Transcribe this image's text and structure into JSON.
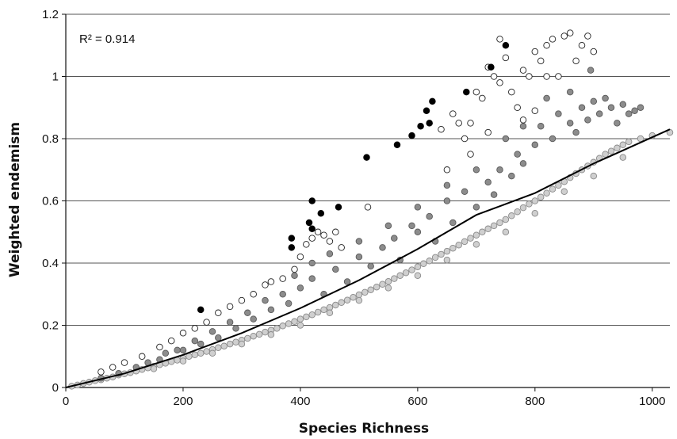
{
  "chart_data": {
    "type": "scatter",
    "xlabel": "Species Richness",
    "ylabel": "Weighted endemism",
    "annotation": "R² = 0.914",
    "xlim": [
      0,
      1030
    ],
    "ylim": [
      0,
      1.2
    ],
    "xticks": [
      0,
      200,
      400,
      600,
      800,
      1000
    ],
    "yticks": [
      0,
      0.2,
      0.4,
      0.6,
      0.8,
      1,
      1.2
    ],
    "xtick_labels": [
      "0",
      "200",
      "400",
      "600",
      "800",
      "1000"
    ],
    "ytick_labels": [
      "0",
      "0.2",
      "0.4",
      "0.6",
      "0.8",
      "1",
      "1.2"
    ],
    "grid": "horizontal",
    "colors": {
      "light_fill": "#cfcfcf",
      "light_stroke": "#8a8a8a",
      "dark_fill": "#8c8c8c",
      "dark_stroke": "#5a5a5a",
      "white_fill": "#ffffff",
      "white_stroke": "#222222",
      "black_fill": "#000000",
      "trend": "#000000",
      "grid": "#555555"
    },
    "trend_line": {
      "model": "power",
      "points": [
        [
          0,
          0.0
        ],
        [
          100,
          0.045
        ],
        [
          200,
          0.105
        ],
        [
          300,
          0.175
        ],
        [
          400,
          0.255
        ],
        [
          500,
          0.345
        ],
        [
          600,
          0.445
        ],
        [
          700,
          0.555
        ],
        [
          800,
          0.625
        ],
        [
          900,
          0.72
        ],
        [
          1030,
          0.83
        ]
      ]
    },
    "series": [
      {
        "category": "light-grey",
        "points": [
          [
            10,
            0.004
          ],
          [
            20,
            0.008
          ],
          [
            30,
            0.013
          ],
          [
            40,
            0.017
          ],
          [
            50,
            0.022
          ],
          [
            60,
            0.025
          ],
          [
            70,
            0.03
          ],
          [
            80,
            0.034
          ],
          [
            90,
            0.04
          ],
          [
            100,
            0.044
          ],
          [
            110,
            0.048
          ],
          [
            120,
            0.053
          ],
          [
            130,
            0.058
          ],
          [
            140,
            0.063
          ],
          [
            150,
            0.068
          ],
          [
            160,
            0.073
          ],
          [
            170,
            0.078
          ],
          [
            180,
            0.083
          ],
          [
            190,
            0.088
          ],
          [
            200,
            0.094
          ],
          [
            210,
            0.1
          ],
          [
            220,
            0.105
          ],
          [
            230,
            0.11
          ],
          [
            240,
            0.116
          ],
          [
            250,
            0.122
          ],
          [
            260,
            0.128
          ],
          [
            270,
            0.133
          ],
          [
            280,
            0.14
          ],
          [
            290,
            0.146
          ],
          [
            300,
            0.152
          ],
          [
            310,
            0.158
          ],
          [
            320,
            0.165
          ],
          [
            330,
            0.171
          ],
          [
            340,
            0.178
          ],
          [
            350,
            0.184
          ],
          [
            360,
            0.19
          ],
          [
            370,
            0.198
          ],
          [
            380,
            0.205
          ],
          [
            390,
            0.212
          ],
          [
            400,
            0.22
          ],
          [
            410,
            0.227
          ],
          [
            420,
            0.234
          ],
          [
            430,
            0.242
          ],
          [
            440,
            0.25
          ],
          [
            450,
            0.257
          ],
          [
            460,
            0.265
          ],
          [
            470,
            0.273
          ],
          [
            480,
            0.281
          ],
          [
            490,
            0.29
          ],
          [
            500,
            0.298
          ],
          [
            510,
            0.306
          ],
          [
            520,
            0.314
          ],
          [
            530,
            0.323
          ],
          [
            540,
            0.332
          ],
          [
            550,
            0.341
          ],
          [
            560,
            0.35
          ],
          [
            570,
            0.36
          ],
          [
            580,
            0.369
          ],
          [
            590,
            0.378
          ],
          [
            600,
            0.388
          ],
          [
            610,
            0.398
          ],
          [
            620,
            0.407
          ],
          [
            630,
            0.418
          ],
          [
            640,
            0.428
          ],
          [
            650,
            0.438
          ],
          [
            660,
            0.448
          ],
          [
            670,
            0.458
          ],
          [
            680,
            0.469
          ],
          [
            690,
            0.48
          ],
          [
            700,
            0.49
          ],
          [
            710,
            0.5
          ],
          [
            720,
            0.51
          ],
          [
            730,
            0.52
          ],
          [
            740,
            0.53
          ],
          [
            750,
            0.54
          ],
          [
            760,
            0.552
          ],
          [
            770,
            0.565
          ],
          [
            780,
            0.578
          ],
          [
            790,
            0.59
          ],
          [
            800,
            0.6
          ],
          [
            810,
            0.612
          ],
          [
            820,
            0.625
          ],
          [
            830,
            0.638
          ],
          [
            840,
            0.65
          ],
          [
            850,
            0.662
          ],
          [
            860,
            0.675
          ],
          [
            870,
            0.688
          ],
          [
            880,
            0.7
          ],
          [
            890,
            0.712
          ],
          [
            900,
            0.724
          ],
          [
            910,
            0.737
          ],
          [
            920,
            0.75
          ],
          [
            930,
            0.76
          ],
          [
            940,
            0.77
          ],
          [
            950,
            0.78
          ],
          [
            960,
            0.79
          ],
          [
            980,
            0.8
          ],
          [
            1000,
            0.81
          ],
          [
            1030,
            0.82
          ],
          [
            150,
            0.06
          ],
          [
            250,
            0.11
          ],
          [
            350,
            0.17
          ],
          [
            450,
            0.24
          ],
          [
            550,
            0.32
          ],
          [
            650,
            0.41
          ],
          [
            750,
            0.5
          ],
          [
            850,
            0.63
          ],
          [
            950,
            0.74
          ],
          [
            200,
            0.085
          ],
          [
            300,
            0.14
          ],
          [
            400,
            0.2
          ],
          [
            500,
            0.28
          ],
          [
            600,
            0.36
          ],
          [
            700,
            0.46
          ],
          [
            800,
            0.56
          ],
          [
            900,
            0.68
          ]
        ]
      },
      {
        "category": "dark-grey",
        "points": [
          [
            60,
            0.03
          ],
          [
            90,
            0.045
          ],
          [
            120,
            0.065
          ],
          [
            160,
            0.09
          ],
          [
            200,
            0.12
          ],
          [
            230,
            0.14
          ],
          [
            260,
            0.16
          ],
          [
            290,
            0.19
          ],
          [
            320,
            0.22
          ],
          [
            350,
            0.25
          ],
          [
            370,
            0.3
          ],
          [
            380,
            0.27
          ],
          [
            400,
            0.32
          ],
          [
            420,
            0.35
          ],
          [
            440,
            0.3
          ],
          [
            460,
            0.38
          ],
          [
            480,
            0.34
          ],
          [
            500,
            0.42
          ],
          [
            520,
            0.39
          ],
          [
            540,
            0.45
          ],
          [
            560,
            0.48
          ],
          [
            570,
            0.41
          ],
          [
            590,
            0.52
          ],
          [
            600,
            0.5
          ],
          [
            620,
            0.55
          ],
          [
            630,
            0.47
          ],
          [
            650,
            0.6
          ],
          [
            660,
            0.53
          ],
          [
            680,
            0.63
          ],
          [
            700,
            0.58
          ],
          [
            720,
            0.66
          ],
          [
            730,
            0.62
          ],
          [
            740,
            0.7
          ],
          [
            760,
            0.68
          ],
          [
            770,
            0.75
          ],
          [
            780,
            0.72
          ],
          [
            800,
            0.78
          ],
          [
            810,
            0.84
          ],
          [
            830,
            0.8
          ],
          [
            840,
            0.88
          ],
          [
            860,
            0.85
          ],
          [
            870,
            0.82
          ],
          [
            880,
            0.9
          ],
          [
            890,
            0.86
          ],
          [
            900,
            0.92
          ],
          [
            910,
            0.88
          ],
          [
            920,
            0.93
          ],
          [
            930,
            0.9
          ],
          [
            940,
            0.85
          ],
          [
            950,
            0.91
          ],
          [
            960,
            0.88
          ],
          [
            970,
            0.89
          ],
          [
            980,
            0.9
          ],
          [
            895,
            1.02
          ],
          [
            860,
            0.95
          ],
          [
            820,
            0.93
          ],
          [
            780,
            0.84
          ],
          [
            750,
            0.8
          ],
          [
            700,
            0.7
          ],
          [
            650,
            0.65
          ],
          [
            600,
            0.58
          ],
          [
            550,
            0.52
          ],
          [
            500,
            0.47
          ],
          [
            450,
            0.43
          ],
          [
            420,
            0.4
          ],
          [
            390,
            0.36
          ],
          [
            340,
            0.28
          ],
          [
            310,
            0.24
          ],
          [
            280,
            0.21
          ],
          [
            250,
            0.18
          ],
          [
            220,
            0.15
          ],
          [
            190,
            0.12
          ],
          [
            170,
            0.11
          ],
          [
            140,
            0.08
          ]
        ]
      },
      {
        "category": "white",
        "points": [
          [
            60,
            0.05
          ],
          [
            80,
            0.065
          ],
          [
            100,
            0.08
          ],
          [
            130,
            0.1
          ],
          [
            160,
            0.13
          ],
          [
            180,
            0.15
          ],
          [
            200,
            0.175
          ],
          [
            220,
            0.19
          ],
          [
            240,
            0.21
          ],
          [
            260,
            0.24
          ],
          [
            280,
            0.26
          ],
          [
            300,
            0.28
          ],
          [
            320,
            0.3
          ],
          [
            340,
            0.33
          ],
          [
            350,
            0.34
          ],
          [
            370,
            0.35
          ],
          [
            390,
            0.38
          ],
          [
            400,
            0.42
          ],
          [
            410,
            0.46
          ],
          [
            420,
            0.48
          ],
          [
            430,
            0.5
          ],
          [
            440,
            0.49
          ],
          [
            450,
            0.47
          ],
          [
            460,
            0.5
          ],
          [
            470,
            0.45
          ],
          [
            515,
            0.58
          ],
          [
            640,
            0.83
          ],
          [
            650,
            0.7
          ],
          [
            660,
            0.88
          ],
          [
            670,
            0.85
          ],
          [
            680,
            0.8
          ],
          [
            690,
            0.75
          ],
          [
            700,
            0.95
          ],
          [
            710,
            0.93
          ],
          [
            720,
            0.82
          ],
          [
            730,
            1.0
          ],
          [
            740,
            0.98
          ],
          [
            750,
            1.06
          ],
          [
            760,
            0.95
          ],
          [
            770,
            0.9
          ],
          [
            780,
            1.02
          ],
          [
            790,
            1.0
          ],
          [
            800,
            1.08
          ],
          [
            810,
            1.05
          ],
          [
            820,
            1.1
          ],
          [
            830,
            1.12
          ],
          [
            840,
            1.0
          ],
          [
            850,
            1.13
          ],
          [
            860,
            1.14
          ],
          [
            870,
            1.05
          ],
          [
            880,
            1.1
          ],
          [
            890,
            1.13
          ],
          [
            900,
            1.08
          ],
          [
            780,
            0.86
          ],
          [
            800,
            0.89
          ],
          [
            820,
            1.0
          ],
          [
            740,
            1.12
          ],
          [
            720,
            1.03
          ],
          [
            690,
            0.85
          ]
        ]
      },
      {
        "category": "black",
        "points": [
          [
            230,
            0.25
          ],
          [
            385,
            0.48
          ],
          [
            385,
            0.45
          ],
          [
            415,
            0.53
          ],
          [
            420,
            0.6
          ],
          [
            420,
            0.51
          ],
          [
            435,
            0.56
          ],
          [
            465,
            0.58
          ],
          [
            513,
            0.74
          ],
          [
            565,
            0.78
          ],
          [
            590,
            0.81
          ],
          [
            605,
            0.84
          ],
          [
            615,
            0.89
          ],
          [
            620,
            0.85
          ],
          [
            625,
            0.92
          ],
          [
            683,
            0.95
          ],
          [
            725,
            1.03
          ],
          [
            750,
            1.1
          ]
        ]
      }
    ]
  }
}
